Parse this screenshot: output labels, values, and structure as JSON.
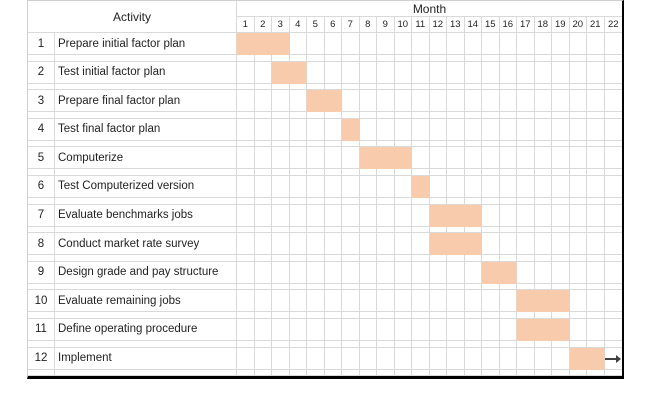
{
  "chart_data": {
    "type": "bar",
    "variant": "gantt",
    "col_header": "Activity",
    "xlabel": "Month",
    "x_range": [
      1,
      22
    ],
    "months": [
      1,
      2,
      3,
      4,
      5,
      6,
      7,
      8,
      9,
      10,
      11,
      12,
      13,
      14,
      15,
      16,
      17,
      18,
      19,
      20,
      21,
      22
    ],
    "tasks": [
      {
        "id": 1,
        "label": "Prepare initial factor plan",
        "start_month": 1,
        "end_month": 3
      },
      {
        "id": 2,
        "label": "Test initial factor plan",
        "start_month": 3,
        "end_month": 4
      },
      {
        "id": 3,
        "label": "Prepare final factor plan",
        "start_month": 5,
        "end_month": 6
      },
      {
        "id": 4,
        "label": "Test final factor plan",
        "start_month": 7,
        "end_month": 7
      },
      {
        "id": 5,
        "label": "Computerize",
        "start_month": 8,
        "end_month": 10
      },
      {
        "id": 6,
        "label": "Test Computerized version",
        "start_month": 11,
        "end_month": 11
      },
      {
        "id": 7,
        "label": "Evaluate benchmarks jobs",
        "start_month": 12,
        "end_month": 14
      },
      {
        "id": 8,
        "label": "Conduct market rate survey",
        "start_month": 12,
        "end_month": 14
      },
      {
        "id": 9,
        "label": "Design grade and pay structure",
        "start_month": 15,
        "end_month": 16
      },
      {
        "id": 10,
        "label": "Evaluate remaining jobs",
        "start_month": 17,
        "end_month": 19
      },
      {
        "id": 11,
        "label": "Define operating procedure",
        "start_month": 17,
        "end_month": 19
      },
      {
        "id": 12,
        "label": "Implement",
        "start_month": 20,
        "end_month": 21,
        "continues": true
      }
    ],
    "continuation_arrow": "→",
    "bar_color": "#F8CBAD",
    "grid_color": "#D9D9D9",
    "border_color": "#000000",
    "arrow_color": "#404040",
    "text_color": "#1F1F1F",
    "grid": true,
    "legend": false
  }
}
